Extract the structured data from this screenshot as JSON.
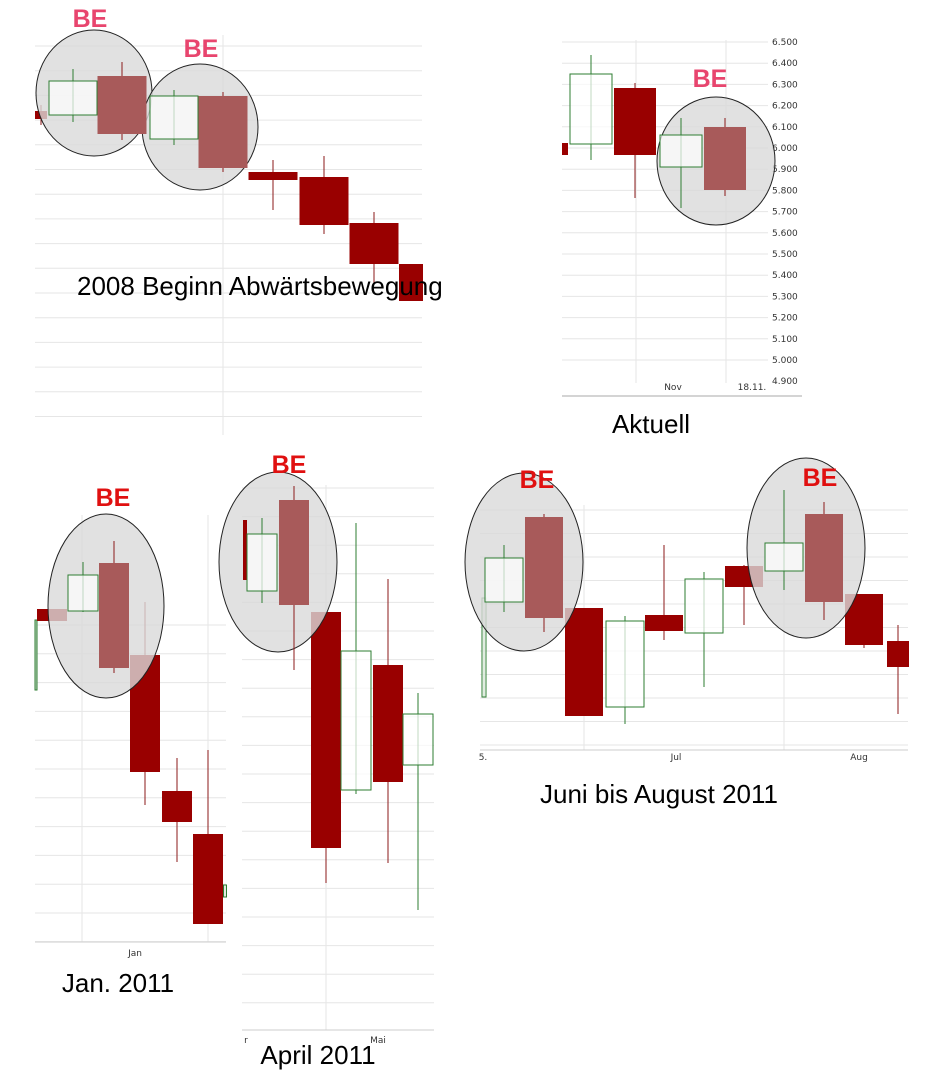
{
  "colors": {
    "bearish_fill": "#990000",
    "bearish_highlight_fill": "#a85a5a",
    "bullish_stroke": "#2e7d32",
    "wick": "#8b1a1a",
    "grid": "#e6e6e6",
    "marker_pink": "#e8456e",
    "marker_red": "#e01010",
    "ellipse_fill": "#d9d9d9"
  },
  "marker_label": "BE",
  "chart_data": [
    {
      "id": "panel-2008",
      "type": "candlestick",
      "title": "2008\nBeginn\nAbwärtsbewegung",
      "y_axis_labels": [],
      "x_axis_labels": [],
      "pattern_markers": [
        "BE",
        "BE"
      ]
    },
    {
      "id": "panel-aktuell",
      "type": "candlestick",
      "title": "Aktuell",
      "y_axis_labels": [
        "6.500",
        "6.400",
        "6.300",
        "6.200",
        "6.100",
        "6.000",
        "5.900",
        "5.800",
        "5.700",
        "5.600",
        "5.500",
        "5.400",
        "5.300",
        "5.200",
        "5.100",
        "5.000",
        "4.900"
      ],
      "x_axis_labels": [
        "Nov",
        "18.11."
      ],
      "ylim": [
        4.9,
        6.5
      ],
      "pattern_markers": [
        "BE"
      ]
    },
    {
      "id": "panel-jan-2011",
      "type": "candlestick",
      "title": "Jan. 2011",
      "y_axis_labels": [],
      "x_axis_labels": [
        "Jan"
      ],
      "pattern_markers": [
        "BE"
      ]
    },
    {
      "id": "panel-april-2011",
      "type": "candlestick",
      "title": "April 2011",
      "y_axis_labels": [],
      "x_axis_labels": [
        "r",
        "Mai"
      ],
      "pattern_markers": [
        "BE"
      ]
    },
    {
      "id": "panel-juni-august-2011",
      "type": "candlestick",
      "title": "Juni bis August 2011",
      "y_axis_labels": [],
      "x_axis_labels": [
        "5.",
        "Jul",
        "Aug"
      ],
      "pattern_markers": [
        "BE",
        "BE"
      ]
    }
  ]
}
